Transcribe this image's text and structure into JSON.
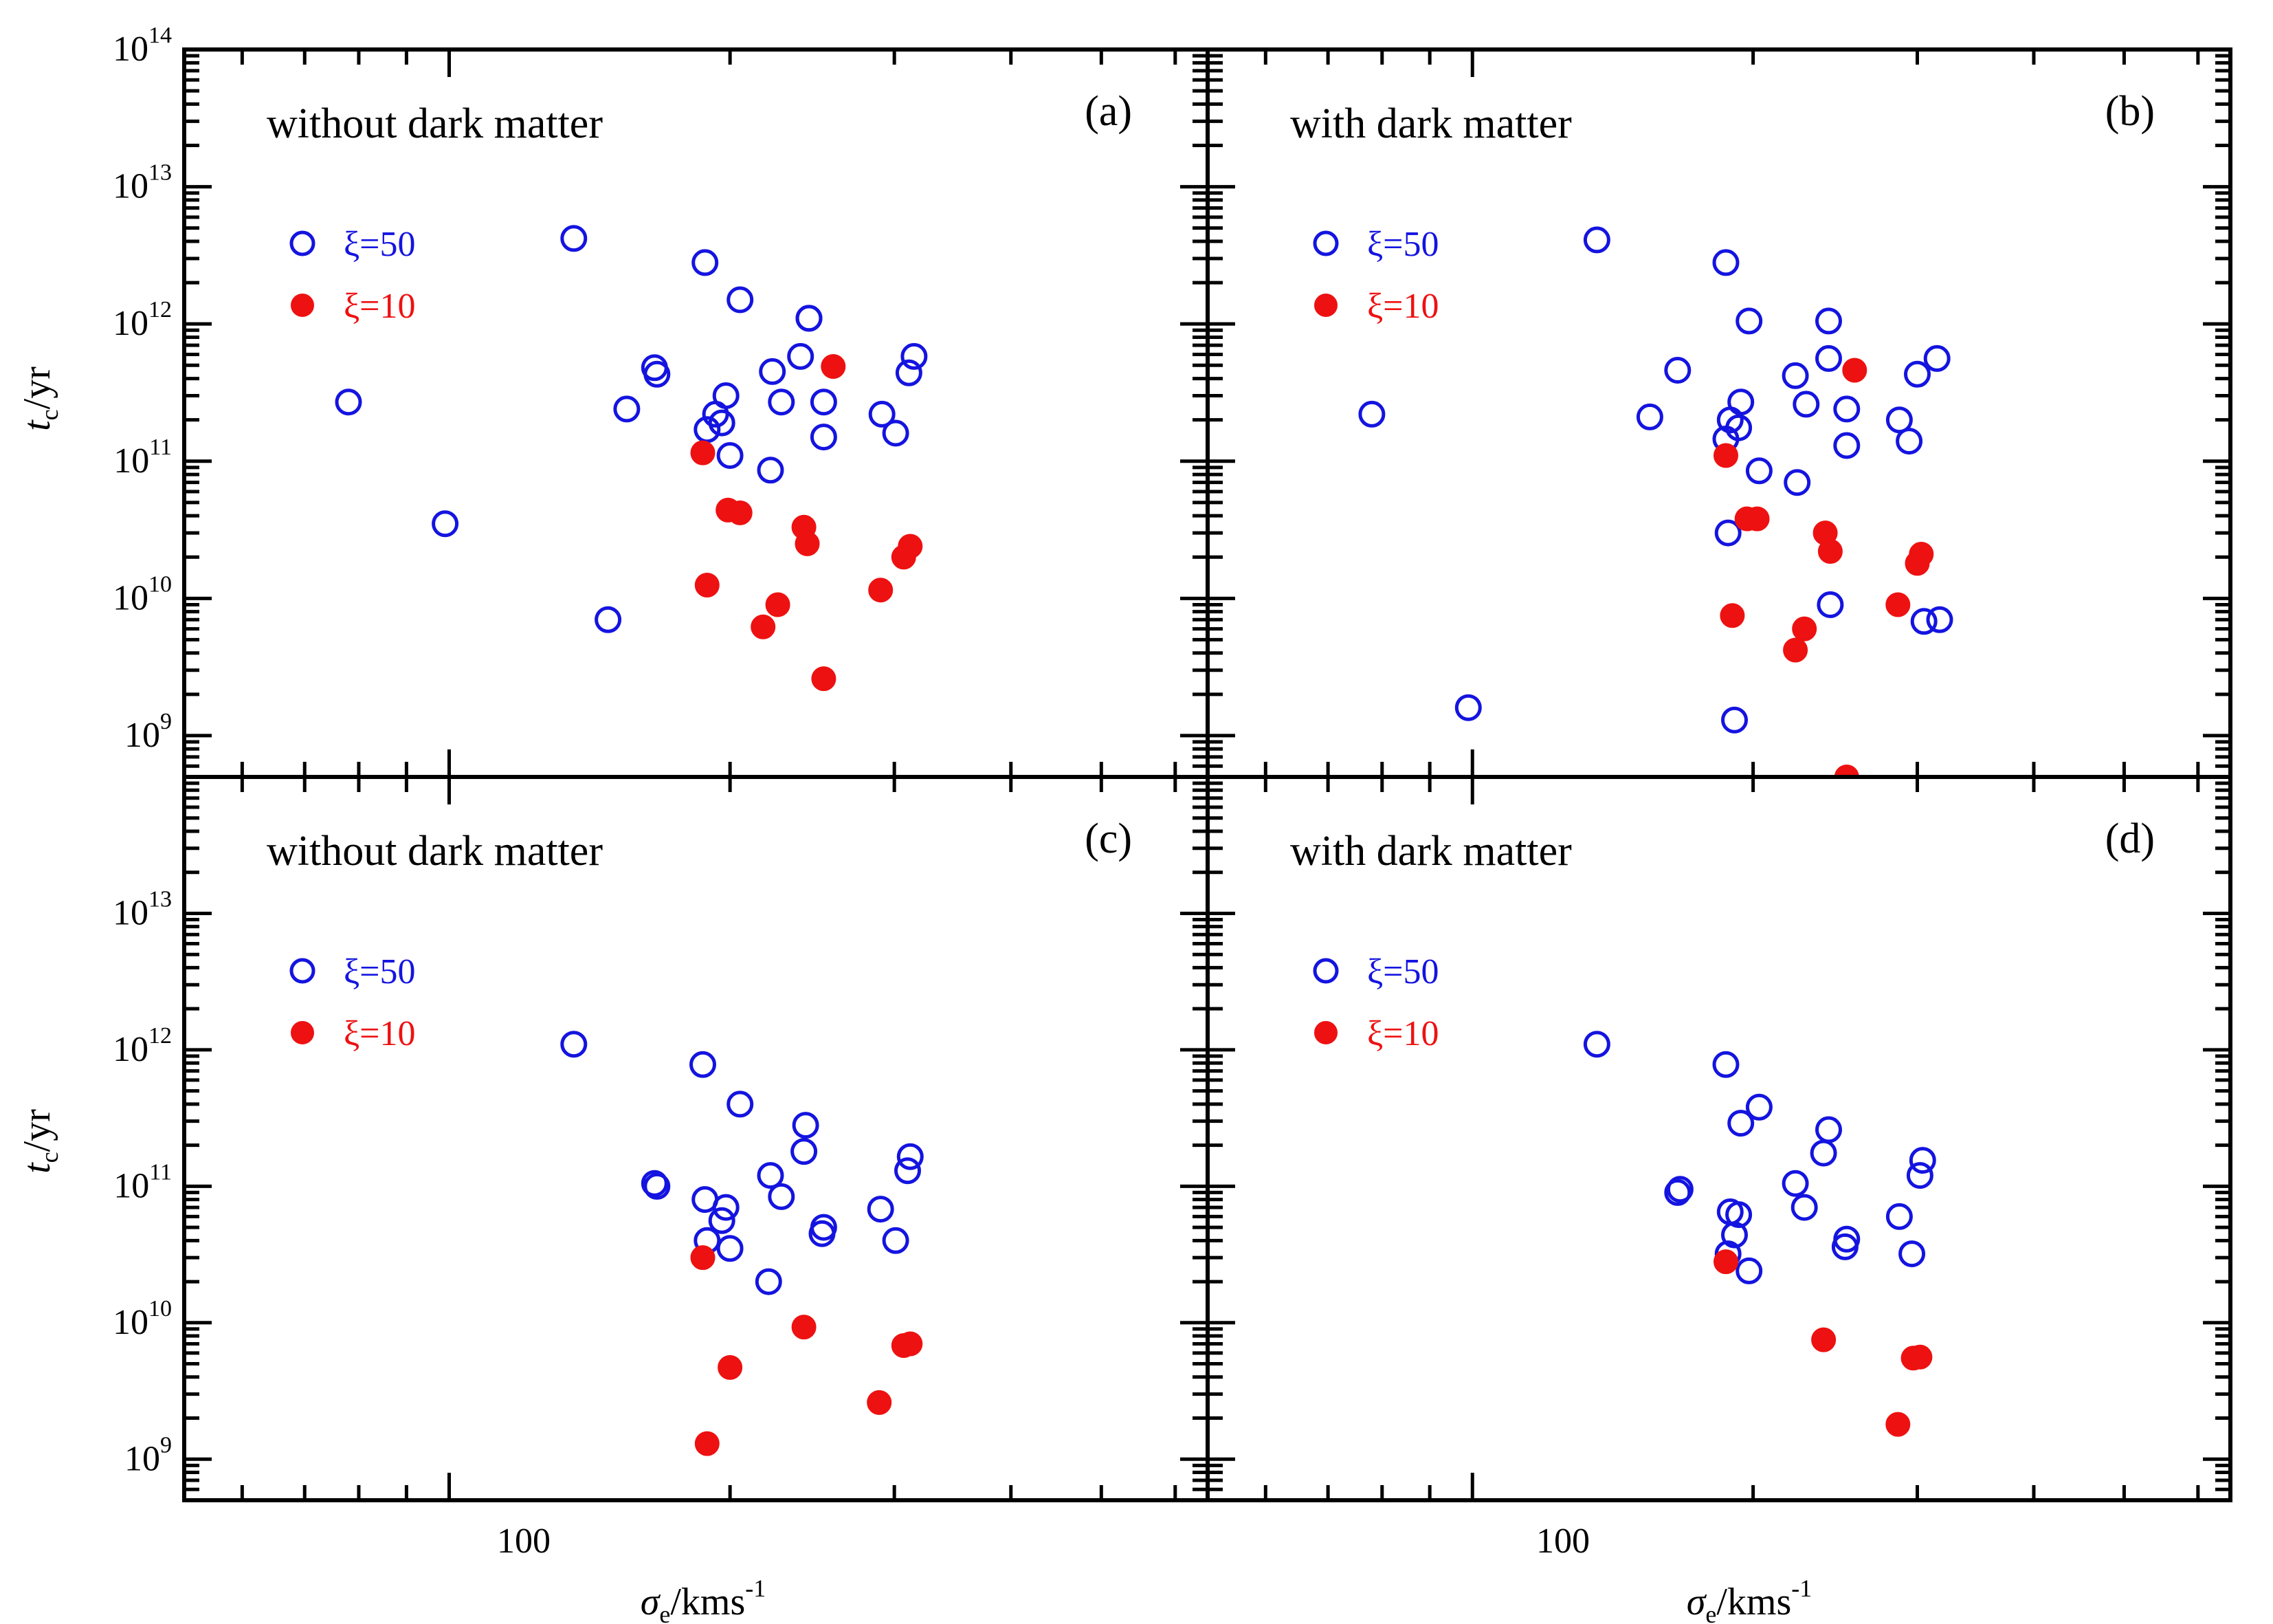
{
  "figure": {
    "y_axis_label": {
      "main": "t",
      "sub": "c",
      "unit": "/yr"
    },
    "x_axis_label": {
      "main": "σ",
      "sub": "e",
      "unit": "/kms",
      "sup": "-1"
    },
    "x_tick_label": "100"
  },
  "colors": {
    "open": "#1414e0",
    "filled": "#ee1111",
    "axis": "#000000"
  },
  "chart_data": [
    {
      "type": "scatter",
      "panel": "(a)",
      "title": "without dark matter",
      "xscale": "log",
      "yscale": "log",
      "xlim": [
        52,
        650
      ],
      "ylim": [
        500000000.0,
        100000000000000.0
      ],
      "xlabel": "σe/kms-1",
      "ylabel": "tc/yr",
      "yticks": [
        {
          "base": "10",
          "exp": "9",
          "value": 1000000000.0
        },
        {
          "base": "10",
          "exp": "10",
          "value": 10000000000.0
        },
        {
          "base": "10",
          "exp": "11",
          "value": 100000000000.0
        },
        {
          "base": "10",
          "exp": "12",
          "value": 1000000000000.0
        },
        {
          "base": "10",
          "exp": "13",
          "value": 10000000000000.0
        },
        {
          "base": "10",
          "exp": "14",
          "value": 100000000000000.0
        }
      ],
      "legend": [
        {
          "marker": "open",
          "label": "ξ=50"
        },
        {
          "marker": "filled",
          "label": "ξ=10"
        }
      ],
      "series": [
        {
          "name": "ξ=50",
          "marker": "open",
          "x": [
            78,
            99,
            136,
            148,
            155,
            166,
            167,
            188,
            189,
            193,
            196,
            198,
            200,
            205,
            221,
            222,
            227,
            238,
            243,
            243,
            252,
            252,
            291,
            301,
            311,
            315
          ],
          "y": [
            270000000000.0,
            35000000000.0,
            4200000000000.0,
            7000000000.0,
            240000000000.0,
            480000000000.0,
            430000000000.0,
            2800000000000.0,
            170000000000.0,
            220000000000.0,
            190000000000.0,
            300000000000.0,
            110000000000.0,
            1500000000000.0,
            86000000000.0,
            450000000000.0,
            270000000000.0,
            580000000000.0,
            1100000000000.0,
            1100000000000.0,
            150000000000.0,
            270000000000.0,
            220000000000.0,
            160000000000.0,
            440000000000.0,
            580000000000.0
          ]
        },
        {
          "name": "ξ=10",
          "marker": "filled",
          "x": [
            187,
            189,
            199,
            205,
            217,
            225,
            240,
            242,
            252,
            258,
            290,
            307,
            312
          ],
          "y": [
            115000000000.0,
            12500000000.0,
            44000000000.0,
            42000000000.0,
            6200000000.0,
            9000000000.0,
            33000000000.0,
            25000000000.0,
            2600000000.0,
            490000000000.0,
            11500000000.0,
            20000000000.0,
            24000000000.0
          ]
        }
      ]
    },
    {
      "type": "scatter",
      "panel": "(b)",
      "title": "with dark matter",
      "xscale": "log",
      "yscale": "log",
      "xlim": [
        52,
        650
      ],
      "ylim": [
        500000000.0,
        100000000000000.0
      ],
      "xlabel": "σe/kms-1",
      "ylabel": "tc/yr",
      "legend": [
        {
          "marker": "open",
          "label": "ξ=50"
        },
        {
          "marker": "filled",
          "label": "ξ=10"
        }
      ],
      "series": [
        {
          "name": "ξ=50",
          "marker": "open",
          "x": [
            78,
            99,
            136,
            155,
            166,
            187,
            187,
            188,
            189,
            191,
            193,
            194,
            198,
            203,
            222,
            223,
            228,
            241,
            241,
            242,
            252,
            252,
            287,
            294,
            300,
            305,
            315,
            317
          ],
          "y": [
            220000000000.0,
            1600000000.0,
            4100000000000.0,
            210000000000.0,
            460000000000.0,
            2800000000000.0,
            145000000000.0,
            30000000000.0,
            200000000000.0,
            1300000000.0,
            175000000000.0,
            270000000000.0,
            1050000000000.0,
            85000000000.0,
            420000000000.0,
            70000000000.0,
            260000000000.0,
            560000000000.0,
            1050000000000.0,
            9000000000.0,
            130000000000.0,
            240000000000.0,
            200000000000.0,
            140000000000.0,
            430000000000.0,
            6800000000.0,
            560000000000.0,
            7000000000.0
          ]
        },
        {
          "name": "ξ=10",
          "marker": "filled",
          "x": [
            187,
            190,
            197,
            202,
            222,
            227,
            239,
            242,
            252,
            257,
            286,
            300,
            303
          ],
          "y": [
            110000000000.0,
            7500000000.0,
            38000000000.0,
            38000000000.0,
            4200000000.0,
            6000000000.0,
            30000000000.0,
            22000000000.0,
            500000000.0,
            460000000000.0,
            9000000000.0,
            18000000000.0,
            21000000000.0
          ]
        }
      ]
    },
    {
      "type": "scatter",
      "panel": "(c)",
      "title": "without dark matter",
      "xscale": "log",
      "yscale": "log",
      "xlim": [
        52,
        650
      ],
      "ylim": [
        500000000.0,
        100000000000000.0
      ],
      "xlabel": "σe/kms-1",
      "ylabel": "tc/yr",
      "yticks": [
        {
          "base": "10",
          "exp": "9",
          "value": 1000000000.0
        },
        {
          "base": "10",
          "exp": "10",
          "value": 10000000000.0
        },
        {
          "base": "10",
          "exp": "11",
          "value": 100000000000.0
        },
        {
          "base": "10",
          "exp": "12",
          "value": 1000000000000.0
        },
        {
          "base": "10",
          "exp": "13",
          "value": 10000000000000.0
        }
      ],
      "legend": [
        {
          "marker": "open",
          "label": "ξ=50"
        },
        {
          "marker": "filled",
          "label": "ξ=10"
        }
      ],
      "series": [
        {
          "name": "ξ=50",
          "marker": "open",
          "x": [
            136,
            166,
            167,
            187,
            188,
            189,
            196,
            198,
            200,
            205,
            220,
            221,
            227,
            240,
            241,
            251,
            252,
            290,
            301,
            310,
            312
          ],
          "y": [
            1100000000000.0,
            105000000000.0,
            100000000000.0,
            780000000000.0,
            80000000000.0,
            40000000000.0,
            56000000000.0,
            70000000000.0,
            35000000000.0,
            400000000000.0,
            20000000000.0,
            120000000000.0,
            84000000000.0,
            180000000000.0,
            280000000000.0,
            45000000000.0,
            50000000000.0,
            68000000000.0,
            40000000000.0,
            130000000000.0,
            165000000000.0
          ]
        },
        {
          "name": "ξ=10",
          "marker": "filled",
          "x": [
            187,
            189,
            200,
            240,
            289,
            307,
            312
          ],
          "y": [
            30000000000.0,
            1300000000.0,
            4700000000.0,
            9300000000.0,
            2600000000.0,
            6800000000.0,
            7000000000.0
          ]
        }
      ]
    },
    {
      "type": "scatter",
      "panel": "(d)",
      "title": "with dark matter",
      "xscale": "log",
      "yscale": "log",
      "xlim": [
        52,
        650
      ],
      "ylim": [
        500000000.0,
        100000000000000.0
      ],
      "xlabel": "σe/kms-1",
      "ylabel": "tc/yr",
      "legend": [
        {
          "marker": "open",
          "label": "ξ=50"
        },
        {
          "marker": "filled",
          "label": "ξ=10"
        }
      ],
      "series": [
        {
          "name": "ξ=50",
          "marker": "open",
          "x": [
            136,
            166,
            167,
            187,
            188,
            189,
            191,
            193,
            194,
            198,
            203,
            222,
            227,
            238,
            241,
            251,
            252,
            287,
            296,
            302,
            304
          ],
          "y": [
            1100000000000.0,
            90000000000.0,
            95000000000.0,
            780000000000.0,
            32000000000.0,
            65000000000.0,
            44000000000.0,
            62000000000.0,
            290000000000.0,
            24000000000.0,
            380000000000.0,
            105000000000.0,
            70000000000.0,
            175000000000.0,
            260000000000.0,
            36000000000.0,
            41000000000.0,
            60000000000.0,
            32000000000.0,
            120000000000.0,
            155000000000.0
          ]
        },
        {
          "name": "ξ=10",
          "marker": "filled",
          "x": [
            187,
            238,
            286,
            297,
            302
          ],
          "y": [
            28000000000.0,
            7500000000.0,
            1800000000.0,
            5500000000.0,
            5600000000.0
          ]
        }
      ]
    }
  ]
}
